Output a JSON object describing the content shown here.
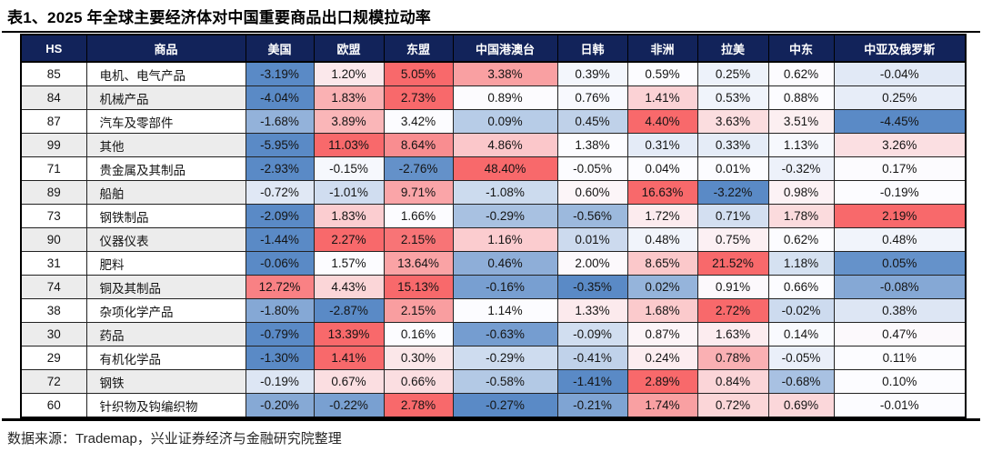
{
  "title": "表1、2025 年全球主要经济体对中国重要商品出口规模拉动率",
  "source_note": "数据来源：Trademap，兴业证券经济与金融研究院整理",
  "colors": {
    "header_bg": "#12235A",
    "header_text": "#FFFFFF",
    "row_stripe": "#ECECEC",
    "row_base": "#FFFFFF",
    "heatmap_min_blue": "#5A8AC6",
    "heatmap_mid_white": "#FCFCFF",
    "heatmap_max_red": "#F8696B"
  },
  "chart_data": {
    "type": "table",
    "title": "2025 年全球主要经济体对中国重要商品出口规模拉动率",
    "columns": [
      "HS",
      "商品",
      "美国",
      "欧盟",
      "东盟",
      "中国港澳台",
      "日韩",
      "非洲",
      "拉美",
      "中东",
      "中亚及俄罗斯"
    ],
    "value_unit": "%",
    "value_format": "two_decimal_percent",
    "heatmap_rule": "per-row 3-color scale: row min = blue #5A8AC6, row median = white #FCFCFF, row max = red #F8696B",
    "rows": [
      {
        "hs": "85",
        "name": "电机、电气产品",
        "values": [
          -3.19,
          1.2,
          5.05,
          3.38,
          0.39,
          0.59,
          0.25,
          0.62,
          -0.04
        ]
      },
      {
        "hs": "84",
        "name": "机械产品",
        "values": [
          -4.04,
          1.83,
          2.73,
          0.89,
          0.76,
          1.41,
          0.53,
          0.88,
          0.25
        ]
      },
      {
        "hs": "87",
        "name": "汽车及零部件",
        "values": [
          -1.68,
          3.89,
          3.42,
          0.09,
          0.45,
          4.4,
          3.63,
          3.51,
          -4.45
        ]
      },
      {
        "hs": "99",
        "name": "其他",
        "values": [
          -5.95,
          11.03,
          8.64,
          4.86,
          1.38,
          0.31,
          0.33,
          1.13,
          3.26
        ]
      },
      {
        "hs": "71",
        "name": "贵金属及其制品",
        "values": [
          -2.93,
          -0.15,
          -2.76,
          48.4,
          -0.05,
          0.04,
          0.01,
          -0.32,
          0.17
        ]
      },
      {
        "hs": "89",
        "name": "船舶",
        "values": [
          -0.72,
          -1.01,
          9.71,
          -1.08,
          0.6,
          16.63,
          -3.22,
          0.98,
          -0.19
        ]
      },
      {
        "hs": "73",
        "name": "钢铁制品",
        "values": [
          -2.09,
          1.83,
          1.66,
          -0.29,
          -0.56,
          1.72,
          0.71,
          1.78,
          2.19
        ]
      },
      {
        "hs": "90",
        "name": "仪器仪表",
        "values": [
          -1.44,
          2.27,
          2.15,
          1.16,
          0.01,
          0.48,
          0.75,
          0.62,
          0.48
        ]
      },
      {
        "hs": "31",
        "name": "肥料",
        "values": [
          -0.06,
          1.57,
          13.64,
          0.46,
          2.0,
          8.65,
          21.52,
          1.18,
          0.05
        ]
      },
      {
        "hs": "74",
        "name": "铜及其制品",
        "values": [
          12.72,
          4.43,
          15.13,
          -0.16,
          -0.35,
          0.02,
          0.91,
          0.66,
          -0.08
        ]
      },
      {
        "hs": "38",
        "name": "杂项化学产品",
        "values": [
          -1.8,
          -2.87,
          2.15,
          1.14,
          1.33,
          1.68,
          2.72,
          -0.02,
          0.38
        ]
      },
      {
        "hs": "30",
        "name": "药品",
        "values": [
          -0.79,
          13.39,
          0.16,
          -0.63,
          -0.09,
          0.87,
          1.63,
          0.14,
          0.47
        ]
      },
      {
        "hs": "29",
        "name": "有机化学品",
        "values": [
          -1.3,
          1.41,
          0.3,
          -0.29,
          -0.41,
          0.24,
          0.78,
          -0.05,
          0.11
        ]
      },
      {
        "hs": "72",
        "name": "钢铁",
        "values": [
          -0.19,
          0.67,
          0.66,
          -0.58,
          -1.41,
          2.89,
          0.84,
          -0.68,
          0.1
        ]
      },
      {
        "hs": "60",
        "name": "针织物及钩编织物",
        "values": [
          -0.2,
          -0.22,
          2.78,
          -0.27,
          -0.21,
          1.74,
          0.72,
          0.69,
          -0.01
        ]
      }
    ]
  }
}
